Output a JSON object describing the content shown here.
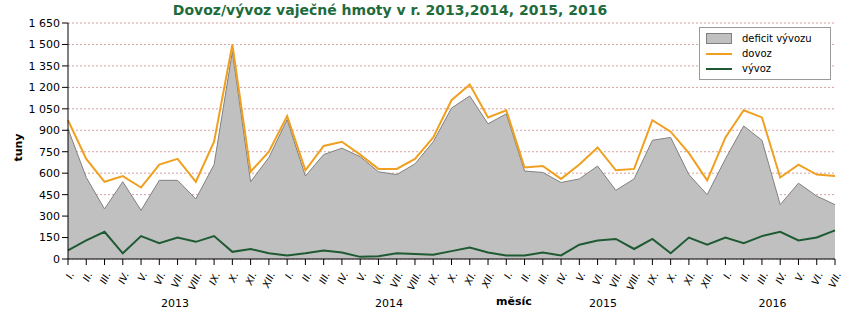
{
  "chart_data": {
    "type": "line",
    "title": "Dovoz/vývoz vaječné hmoty v r. 2013,2014, 2015, 2016",
    "y_label": "tuny",
    "x_label": "měsíc",
    "years": [
      "2013",
      "2014",
      "2015",
      "2016"
    ],
    "categories": [
      "I.",
      "II.",
      "III.",
      "IV.",
      "V.",
      "VI.",
      "VII.",
      "VIII.",
      "IX.",
      "X.",
      "XI.",
      "XII.",
      "I.",
      "II.",
      "III.",
      "IV.",
      "V.",
      "VI.",
      "VII.",
      "VIII.",
      "IX.",
      "X.",
      "XI.",
      "XII.",
      "I.",
      "II.",
      "III.",
      "IV.",
      "V.",
      "VI.",
      "VII.",
      "VIII.",
      "IX.",
      "X.",
      "XI.",
      "XII.",
      "I.",
      "II.",
      "III.",
      "IV.",
      "V.",
      "VI.",
      "VII."
    ],
    "series": [
      {
        "name": "deficit vývozu",
        "type": "area",
        "color": "#c0c0c0",
        "values": [
          910,
          570,
          350,
          540,
          340,
          550,
          550,
          420,
          660,
          1450,
          540,
          710,
          975,
          580,
          730,
          775,
          715,
          610,
          590,
          665,
          820,
          1055,
          1140,
          945,
          1015,
          615,
          605,
          535,
          560,
          650,
          480,
          560,
          830,
          850,
          590,
          450,
          700,
          930,
          830,
          380,
          530,
          440,
          380
        ]
      },
      {
        "name": "dovoz",
        "type": "line",
        "color": "#f0a020",
        "values": [
          970,
          700,
          540,
          580,
          500,
          660,
          700,
          540,
          820,
          1500,
          610,
          750,
          1000,
          620,
          790,
          820,
          730,
          630,
          630,
          700,
          850,
          1110,
          1220,
          990,
          1040,
          640,
          650,
          560,
          660,
          780,
          620,
          630,
          970,
          890,
          740,
          550,
          850,
          1040,
          990,
          570,
          660,
          590,
          580
        ]
      },
      {
        "name": "vývoz",
        "type": "line",
        "color": "#1e5a32",
        "values": [
          60,
          130,
          190,
          40,
          160,
          110,
          150,
          120,
          160,
          50,
          70,
          40,
          25,
          40,
          60,
          45,
          15,
          20,
          40,
          35,
          30,
          55,
          80,
          45,
          25,
          25,
          45,
          25,
          100,
          130,
          140,
          70,
          140,
          40,
          150,
          100,
          150,
          110,
          160,
          190,
          130,
          150,
          200
        ]
      }
    ],
    "ylim": [
      0,
      1650
    ],
    "yticks": [
      0,
      150,
      300,
      450,
      600,
      750,
      900,
      {
        "value": 1050,
        "label": "1 050"
      },
      {
        "value": 1200,
        "label": "1 200"
      },
      {
        "value": 1350,
        "label": "1 350"
      },
      {
        "value": 1500,
        "label": "1 500"
      },
      {
        "value": 1650,
        "label": "1 650"
      }
    ],
    "grid": true,
    "legend": "upper right"
  }
}
